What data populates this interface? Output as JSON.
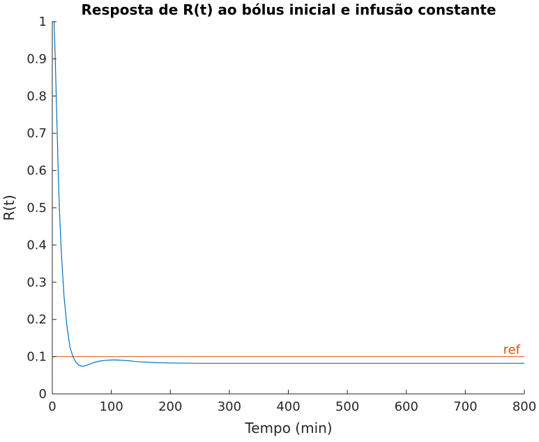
{
  "chart_data": {
    "type": "line",
    "title": "Resposta de R(t) ao bólus inicial e infusão constante",
    "xlabel": "Tempo (min)",
    "ylabel": "R(t)",
    "xlim": [
      0,
      800
    ],
    "ylim": [
      0,
      1
    ],
    "xticks": [
      0,
      100,
      200,
      300,
      400,
      500,
      600,
      700,
      800
    ],
    "yticks": [
      0,
      0.1,
      0.2,
      0.3,
      0.4,
      0.5,
      0.6,
      0.7,
      0.8,
      0.9,
      1
    ],
    "xtick_labels": [
      "0",
      "100",
      "200",
      "300",
      "400",
      "500",
      "600",
      "700",
      "800"
    ],
    "ytick_labels": [
      "0",
      "0.1",
      "0.2",
      "0.3",
      "0.4",
      "0.5",
      "0.6",
      "0.7",
      "0.8",
      "0.9",
      "1"
    ],
    "grid": false,
    "colors": {
      "series": "#0072BD",
      "reference": "#D95319",
      "axes": "#262626"
    },
    "series": [
      {
        "x": [
          0,
          3,
          5,
          8,
          10,
          12,
          15,
          18,
          20,
          25,
          30,
          35,
          40,
          45,
          50,
          55,
          60,
          70,
          80,
          90,
          100,
          110,
          120,
          130,
          140,
          150,
          175,
          200,
          250,
          300,
          400,
          500,
          600,
          700,
          800
        ],
        "values": [
          1.0,
          1.0,
          0.9,
          0.72,
          0.6,
          0.5,
          0.39,
          0.31,
          0.26,
          0.18,
          0.125,
          0.1,
          0.085,
          0.077,
          0.074,
          0.075,
          0.078,
          0.084,
          0.088,
          0.09,
          0.091,
          0.091,
          0.09,
          0.089,
          0.087,
          0.086,
          0.084,
          0.083,
          0.082,
          0.082,
          0.082,
          0.082,
          0.082,
          0.082,
          0.082
        ]
      }
    ],
    "reference_line": {
      "y": 0.1,
      "label": "ref"
    }
  }
}
